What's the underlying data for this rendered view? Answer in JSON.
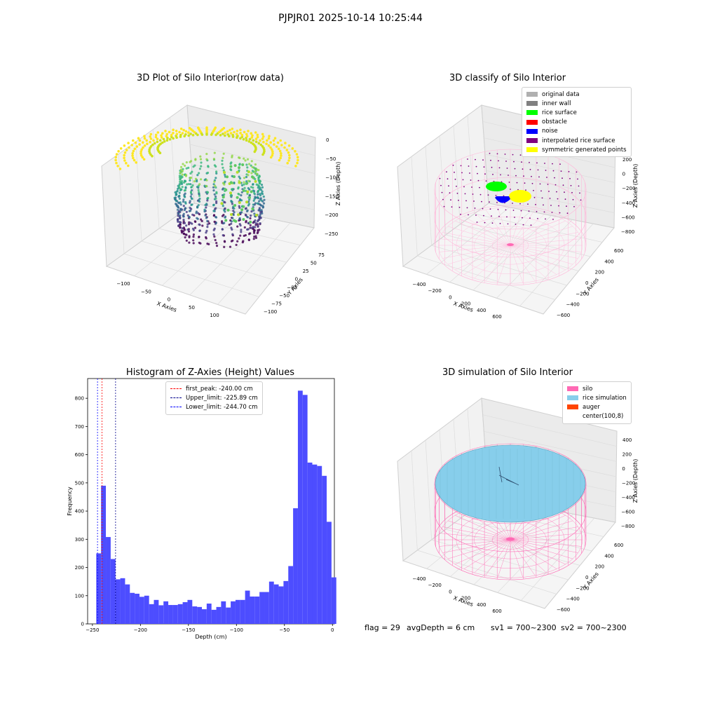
{
  "figure_title": "PJPJR01 2025-10-14 10:25:44",
  "footer": {
    "flag": "flag = 29",
    "avg_depth": "avgDepth = 6 cm",
    "sv1": "sv1 = 700~2300",
    "sv2": "sv2 = 700~2300"
  },
  "colors": {
    "histogram_bar": "#4d4dff",
    "first_peak_line": "#ff0000",
    "upper_limit_line": "#00008b",
    "lower_limit_line": "#0000ff",
    "silo": "#ff69b4",
    "rice_simulation": "#87ceeb",
    "auger": "#ff4500",
    "rice_surface": "#00ff00",
    "noise": "#0000ff",
    "symmetric_points": "#ffff00",
    "interpolated_rice_surface": "#800080"
  },
  "chart_data": [
    {
      "type": "scatter",
      "projection": "3d",
      "title": "3D Plot of Silo Interior(row data)",
      "xlabel": "X Axies",
      "ylabel": "Y Axies",
      "zlabel": "Z Axies (Depth)",
      "x_ticks": [
        "-100",
        "-50",
        "0",
        "50",
        "100"
      ],
      "y_ticks": [
        "75",
        "50",
        "25",
        "0",
        "-25",
        "-50",
        "-75",
        "-100"
      ],
      "z_ticks": [
        "0",
        "-50",
        "-100",
        "-150",
        "-200",
        "-250"
      ],
      "colormap": "viridis"
    },
    {
      "type": "scatter",
      "projection": "3d",
      "title": "3D classify of Silo Interior",
      "xlabel": "X Axies",
      "ylabel": "Y Axies",
      "zlabel": "Z Axies (Depth)",
      "x_ticks": [
        "-400",
        "-200",
        "0",
        "200",
        "400",
        "600"
      ],
      "y_ticks": [
        "600",
        "400",
        "200",
        "0",
        "-200",
        "-400",
        "-600"
      ],
      "z_ticks": [
        "200",
        "0",
        "-200",
        "-400",
        "-600",
        "-800"
      ],
      "z_ticks_partial": [
        "00"
      ],
      "legend": [
        {
          "label": "original data",
          "color": "#b0b0b0"
        },
        {
          "label": "inner wall",
          "color": "#808080"
        },
        {
          "label": "rice surface",
          "color": "#00ff00"
        },
        {
          "label": "obstacle",
          "color": "#ff0000"
        },
        {
          "label": "noise",
          "color": "#0000ff"
        },
        {
          "label": "interpolated rice surface",
          "color": "#800080"
        },
        {
          "label": "symmetric generated points",
          "color": "#ffff00"
        }
      ]
    },
    {
      "type": "bar",
      "title": "Histogram of Z-Axies (Height) Values",
      "xlabel": "Depth (cm)",
      "ylabel": "Frequency",
      "xlim": [
        -255,
        2
      ],
      "ylim": [
        0,
        870
      ],
      "x_ticks": [
        -250,
        -200,
        -150,
        -100,
        -50,
        0
      ],
      "y_ticks": [
        0,
        100,
        200,
        300,
        400,
        500,
        600,
        700,
        800
      ],
      "bin_width": 5,
      "bin_start": -246,
      "values": [
        250,
        490,
        308,
        230,
        158,
        162,
        140,
        110,
        107,
        96,
        100,
        70,
        85,
        66,
        80,
        67,
        67,
        70,
        77,
        85,
        62,
        60,
        52,
        72,
        50,
        60,
        80,
        58,
        80,
        85,
        85,
        118,
        97,
        97,
        113,
        113,
        150,
        140,
        133,
        152,
        205,
        410,
        827,
        812,
        572,
        565,
        560,
        525,
        362,
        165
      ],
      "reference_lines": [
        {
          "label": "first_peak: -240.00 cm",
          "x": -240.0,
          "color": "#ff0000"
        },
        {
          "label": "Upper_limit: -225.89 cm",
          "x": -225.89,
          "color": "#00008b"
        },
        {
          "label": "Lower_limit: -244.70 cm",
          "x": -244.7,
          "color": "#0000ff"
        }
      ]
    },
    {
      "type": "area",
      "projection": "3d",
      "title": "3D simulation of Silo Interior",
      "xlabel": "X Axies",
      "ylabel": "Y Axies",
      "zlabel": "Z Axies (Depth)",
      "x_ticks": [
        "-400",
        "-200",
        "0",
        "200",
        "400",
        "600"
      ],
      "y_ticks": [
        "600",
        "400",
        "200",
        "0",
        "-200",
        "-400",
        "-600"
      ],
      "z_ticks": [
        "400",
        "200",
        "0",
        "-200",
        "-400",
        "-600",
        "-800"
      ],
      "legend": [
        {
          "label": "silo",
          "color": "#ff69b4"
        },
        {
          "label": "rice simulation",
          "color": "#87ceeb"
        },
        {
          "label": "auger",
          "color": "#ff4500"
        },
        {
          "label": "center(100,8)",
          "color": "#ffffff"
        }
      ]
    }
  ]
}
